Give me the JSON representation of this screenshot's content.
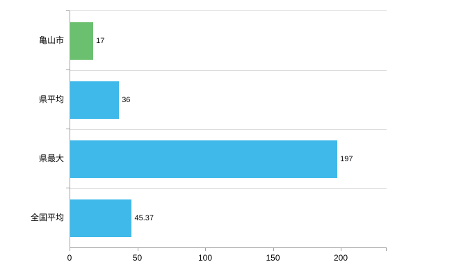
{
  "chart_data": {
    "type": "bar",
    "orientation": "horizontal",
    "title": "",
    "xlabel": "",
    "ylabel": "",
    "categories": [
      "亀山市",
      "県平均",
      "県最大",
      "全国平均"
    ],
    "values": [
      17,
      36,
      197,
      45.37
    ],
    "value_labels": [
      "17",
      "36",
      "197",
      "45.37"
    ],
    "bar_colors": [
      "#6bc06f",
      "#3fb9e9",
      "#3fb9e9",
      "#3fb9e9"
    ],
    "x_ticks": [
      0,
      50,
      100,
      150,
      200
    ],
    "x_tick_labels": [
      "0",
      "50",
      "100",
      "150",
      "200"
    ],
    "xlim": [
      0,
      233.33
    ],
    "grid": true,
    "legend": "none"
  },
  "colors": {
    "green_bar": "#6bc06f",
    "blue_bar": "#3fb9e9",
    "axis_line": "#a0a0a0",
    "grid_line": "#dcdcdc",
    "background": "#ffffff",
    "text": "#000000"
  }
}
